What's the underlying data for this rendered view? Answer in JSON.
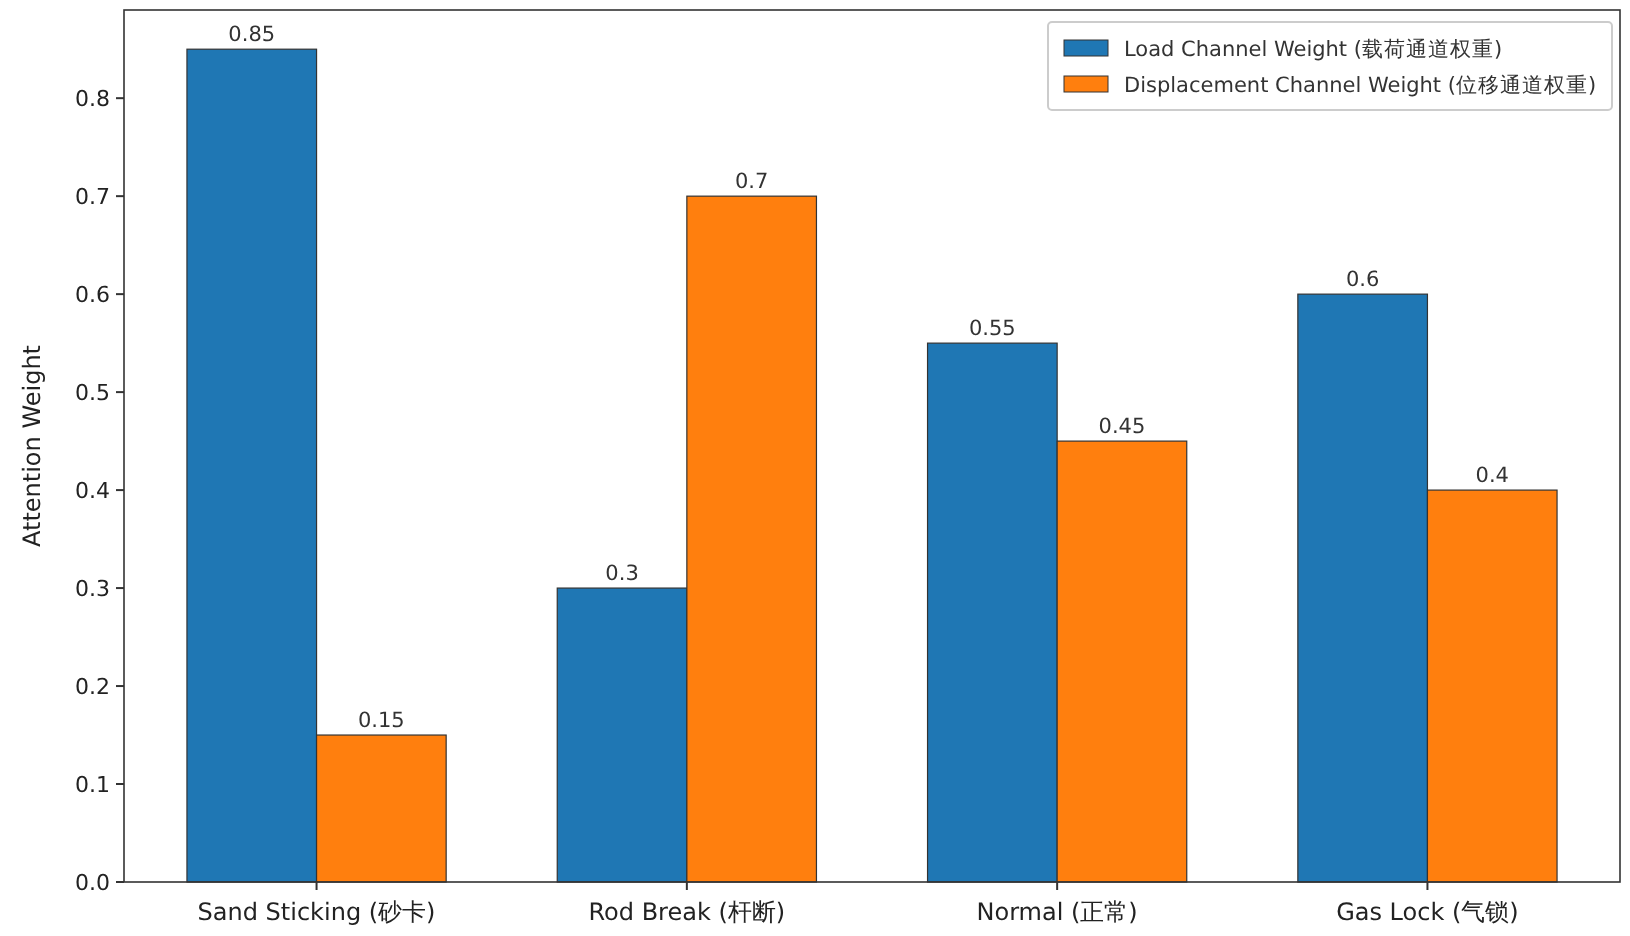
{
  "chart_data": {
    "type": "bar",
    "ylabel": "Attention Weight",
    "categories": [
      "Sand Sticking (砂卡)",
      "Rod Break (杆断)",
      "Normal (正常)",
      "Gas Lock (气锁)"
    ],
    "series": [
      {
        "name": "Load Channel Weight (载荷通道权重)",
        "color": "#1f77b4",
        "values": [
          0.85,
          0.3,
          0.55,
          0.6
        ]
      },
      {
        "name": "Displacement Channel Weight (位移通道权重)",
        "color": "#ff7f0e",
        "values": [
          0.15,
          0.7,
          0.45,
          0.4
        ]
      }
    ],
    "ylim": [
      0,
      0.89
    ],
    "yticks": [
      {
        "value": 0,
        "label": "0.0"
      },
      0.1,
      0.2,
      0.3,
      0.4,
      0.5,
      0.6,
      0.7,
      0.8
    ],
    "data_labels": true,
    "legend": "top right",
    "grid": false
  }
}
